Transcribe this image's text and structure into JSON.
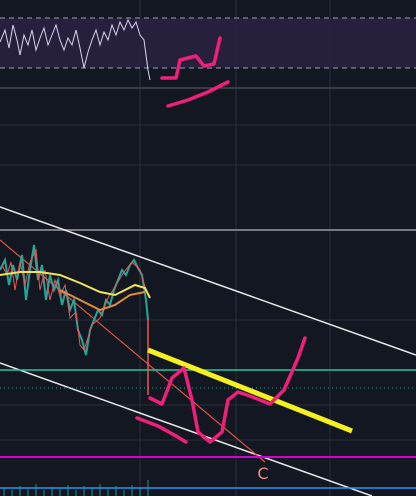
{
  "annotations": {
    "wave_label": "C"
  }
}
